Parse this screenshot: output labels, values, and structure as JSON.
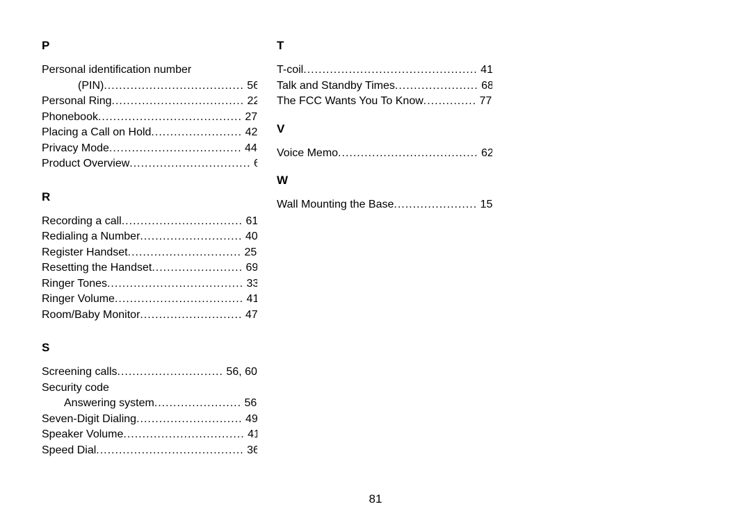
{
  "page_number": "81",
  "columns": [
    {
      "sections": [
        {
          "letter": "P",
          "entries": [
            {
              "label": "Personal identification number",
              "page": "",
              "leader": false,
              "indent": "none"
            },
            {
              "label": "(PIN)",
              "page": "56",
              "leader": true,
              "indent": "sub"
            },
            {
              "label": "Personal Ring",
              "page": "22",
              "leader": true,
              "indent": "none"
            },
            {
              "label": "Phonebook",
              "page": "27",
              "leader": true,
              "indent": "none"
            },
            {
              "label": "Placing a Call on Hold",
              "page": "42",
              "leader": true,
              "indent": "none"
            },
            {
              "label": "Privacy Mode",
              "page": "44",
              "leader": true,
              "indent": "none"
            },
            {
              "label": "Product Overview",
              "page": "6",
              "leader": true,
              "indent": "none"
            }
          ]
        },
        {
          "letter": "R",
          "entries": [
            {
              "label": "Recording a call",
              "page": "61",
              "leader": true,
              "indent": "none"
            },
            {
              "label": "Redialing a Number",
              "page": "40",
              "leader": true,
              "indent": "none"
            },
            {
              "label": "Register Handset",
              "page": "25",
              "leader": true,
              "indent": "none"
            },
            {
              "label": "Resetting the Handset",
              "page": "69",
              "leader": true,
              "indent": "none"
            },
            {
              "label": "Ringer Tones",
              "page": "33",
              "leader": true,
              "indent": "none"
            },
            {
              "label": "Ringer Volume",
              "page": "41",
              "leader": true,
              "indent": "none"
            },
            {
              "label": "Room/Baby Monitor",
              "page": "47",
              "leader": true,
              "indent": "none"
            }
          ]
        },
        {
          "letter": "S",
          "entries": [
            {
              "label": "Screening calls",
              "page": "56, 60",
              "leader": true,
              "indent": "none"
            },
            {
              "label": "Security code",
              "page": "",
              "leader": false,
              "indent": "none"
            },
            {
              "label": "Answering system",
              "page": "56",
              "leader": true,
              "indent": "sub2"
            },
            {
              "label": "Seven-Digit Dialing",
              "page": "49",
              "leader": true,
              "indent": "none"
            },
            {
              "label": "Speaker Volume",
              "page": "41",
              "leader": true,
              "indent": "none"
            },
            {
              "label": "Speed Dial",
              "page": "36",
              "leader": true,
              "indent": "none"
            }
          ]
        }
      ]
    },
    {
      "sections": [
        {
          "letter": "T",
          "entries": [
            {
              "label": "T-coil",
              "page": "41",
              "leader": true,
              "indent": "none"
            },
            {
              "label": "Talk and Standby Times",
              "page": "68",
              "leader": true,
              "indent": "none"
            },
            {
              "label": "The FCC Wants You To Know",
              "page": "77",
              "leader": true,
              "indent": "none"
            }
          ]
        },
        {
          "letter": "V",
          "entries": [
            {
              "label": "Voice Memo",
              "page": "62",
              "leader": true,
              "indent": "none"
            }
          ]
        },
        {
          "letter": "W",
          "entries": [
            {
              "label": "Wall Mounting the Base",
              "page": "15",
              "leader": true,
              "indent": "none"
            }
          ]
        }
      ]
    }
  ]
}
